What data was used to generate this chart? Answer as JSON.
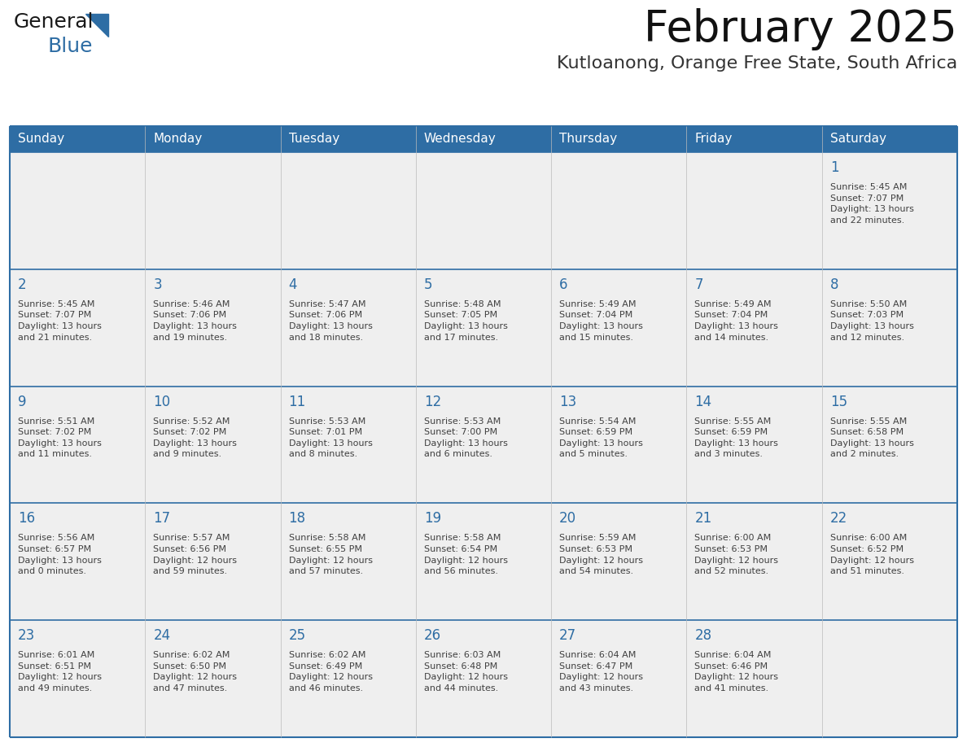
{
  "title": "February 2025",
  "subtitle": "Kutloanong, Orange Free State, South Africa",
  "header_bg": "#2E6DA4",
  "header_text_color": "#FFFFFF",
  "cell_bg": "#EFEFEF",
  "cell_bg_alt": "#FFFFFF",
  "day_number_color": "#2E6DA4",
  "info_text_color": "#404040",
  "border_color": "#2E6DA4",
  "separator_color": "#2E6DA4",
  "days_of_week": [
    "Sunday",
    "Monday",
    "Tuesday",
    "Wednesday",
    "Thursday",
    "Friday",
    "Saturday"
  ],
  "weeks": [
    [
      {
        "day": null,
        "info": null
      },
      {
        "day": null,
        "info": null
      },
      {
        "day": null,
        "info": null
      },
      {
        "day": null,
        "info": null
      },
      {
        "day": null,
        "info": null
      },
      {
        "day": null,
        "info": null
      },
      {
        "day": 1,
        "info": "Sunrise: 5:45 AM\nSunset: 7:07 PM\nDaylight: 13 hours\nand 22 minutes."
      }
    ],
    [
      {
        "day": 2,
        "info": "Sunrise: 5:45 AM\nSunset: 7:07 PM\nDaylight: 13 hours\nand 21 minutes."
      },
      {
        "day": 3,
        "info": "Sunrise: 5:46 AM\nSunset: 7:06 PM\nDaylight: 13 hours\nand 19 minutes."
      },
      {
        "day": 4,
        "info": "Sunrise: 5:47 AM\nSunset: 7:06 PM\nDaylight: 13 hours\nand 18 minutes."
      },
      {
        "day": 5,
        "info": "Sunrise: 5:48 AM\nSunset: 7:05 PM\nDaylight: 13 hours\nand 17 minutes."
      },
      {
        "day": 6,
        "info": "Sunrise: 5:49 AM\nSunset: 7:04 PM\nDaylight: 13 hours\nand 15 minutes."
      },
      {
        "day": 7,
        "info": "Sunrise: 5:49 AM\nSunset: 7:04 PM\nDaylight: 13 hours\nand 14 minutes."
      },
      {
        "day": 8,
        "info": "Sunrise: 5:50 AM\nSunset: 7:03 PM\nDaylight: 13 hours\nand 12 minutes."
      }
    ],
    [
      {
        "day": 9,
        "info": "Sunrise: 5:51 AM\nSunset: 7:02 PM\nDaylight: 13 hours\nand 11 minutes."
      },
      {
        "day": 10,
        "info": "Sunrise: 5:52 AM\nSunset: 7:02 PM\nDaylight: 13 hours\nand 9 minutes."
      },
      {
        "day": 11,
        "info": "Sunrise: 5:53 AM\nSunset: 7:01 PM\nDaylight: 13 hours\nand 8 minutes."
      },
      {
        "day": 12,
        "info": "Sunrise: 5:53 AM\nSunset: 7:00 PM\nDaylight: 13 hours\nand 6 minutes."
      },
      {
        "day": 13,
        "info": "Sunrise: 5:54 AM\nSunset: 6:59 PM\nDaylight: 13 hours\nand 5 minutes."
      },
      {
        "day": 14,
        "info": "Sunrise: 5:55 AM\nSunset: 6:59 PM\nDaylight: 13 hours\nand 3 minutes."
      },
      {
        "day": 15,
        "info": "Sunrise: 5:55 AM\nSunset: 6:58 PM\nDaylight: 13 hours\nand 2 minutes."
      }
    ],
    [
      {
        "day": 16,
        "info": "Sunrise: 5:56 AM\nSunset: 6:57 PM\nDaylight: 13 hours\nand 0 minutes."
      },
      {
        "day": 17,
        "info": "Sunrise: 5:57 AM\nSunset: 6:56 PM\nDaylight: 12 hours\nand 59 minutes."
      },
      {
        "day": 18,
        "info": "Sunrise: 5:58 AM\nSunset: 6:55 PM\nDaylight: 12 hours\nand 57 minutes."
      },
      {
        "day": 19,
        "info": "Sunrise: 5:58 AM\nSunset: 6:54 PM\nDaylight: 12 hours\nand 56 minutes."
      },
      {
        "day": 20,
        "info": "Sunrise: 5:59 AM\nSunset: 6:53 PM\nDaylight: 12 hours\nand 54 minutes."
      },
      {
        "day": 21,
        "info": "Sunrise: 6:00 AM\nSunset: 6:53 PM\nDaylight: 12 hours\nand 52 minutes."
      },
      {
        "day": 22,
        "info": "Sunrise: 6:00 AM\nSunset: 6:52 PM\nDaylight: 12 hours\nand 51 minutes."
      }
    ],
    [
      {
        "day": 23,
        "info": "Sunrise: 6:01 AM\nSunset: 6:51 PM\nDaylight: 12 hours\nand 49 minutes."
      },
      {
        "day": 24,
        "info": "Sunrise: 6:02 AM\nSunset: 6:50 PM\nDaylight: 12 hours\nand 47 minutes."
      },
      {
        "day": 25,
        "info": "Sunrise: 6:02 AM\nSunset: 6:49 PM\nDaylight: 12 hours\nand 46 minutes."
      },
      {
        "day": 26,
        "info": "Sunrise: 6:03 AM\nSunset: 6:48 PM\nDaylight: 12 hours\nand 44 minutes."
      },
      {
        "day": 27,
        "info": "Sunrise: 6:04 AM\nSunset: 6:47 PM\nDaylight: 12 hours\nand 43 minutes."
      },
      {
        "day": 28,
        "info": "Sunrise: 6:04 AM\nSunset: 6:46 PM\nDaylight: 12 hours\nand 41 minutes."
      },
      {
        "day": null,
        "info": null
      }
    ]
  ],
  "fig_width": 11.88,
  "fig_height": 9.18,
  "dpi": 100
}
